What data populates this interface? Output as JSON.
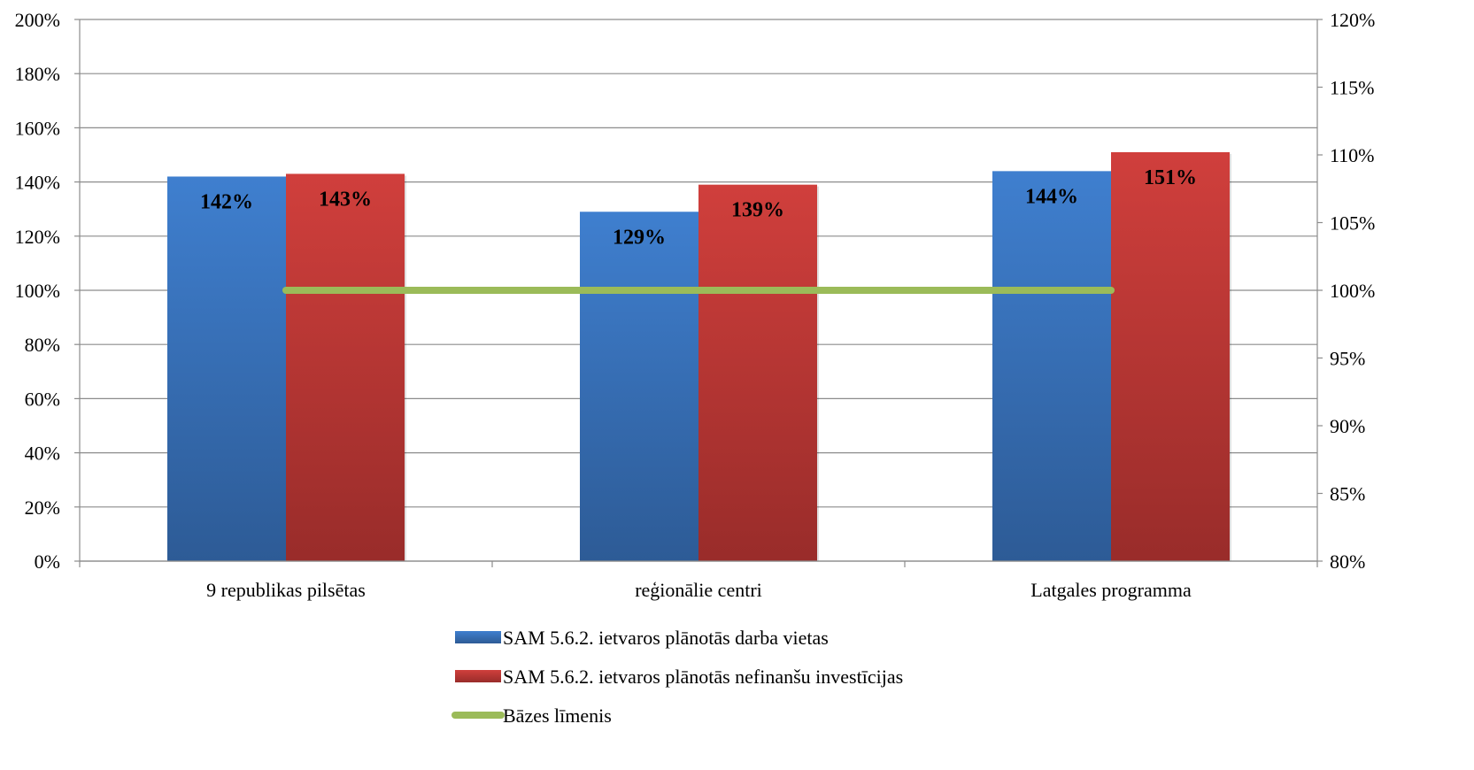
{
  "chart_data": {
    "type": "bar",
    "categories": [
      "9 republikas pilsētas",
      "reģionālie centri",
      "Latgales programma"
    ],
    "series": [
      {
        "name": "SAM 5.6.2. ietvaros plānotās darba vietas",
        "axis": "left",
        "values": [
          142,
          129,
          144
        ],
        "labels": [
          "142%",
          "129%",
          "144%"
        ],
        "color": "#3f7fcf",
        "color_dark": "#2d5b96"
      },
      {
        "name": "SAM 5.6.2. ietvaros plānotās nefinanšu investīcijas",
        "axis": "left",
        "values": [
          143,
          139,
          151
        ],
        "labels": [
          "143%",
          "139%",
          "151%"
        ],
        "color": "#d03f3c",
        "color_dark": "#992c2a"
      },
      {
        "name": "Bāzes līmenis",
        "type": "line",
        "axis": "right",
        "values": [
          100,
          100,
          100
        ],
        "color": "#9bbb59"
      }
    ],
    "left_axis": {
      "ylim": [
        0,
        200
      ],
      "ticks": [
        0,
        20,
        40,
        60,
        80,
        100,
        120,
        140,
        160,
        180,
        200
      ],
      "tick_labels": [
        "0%",
        "20%",
        "40%",
        "60%",
        "80%",
        "100%",
        "120%",
        "140%",
        "160%",
        "180%",
        "200%"
      ]
    },
    "right_axis": {
      "ylim": [
        80,
        120
      ],
      "ticks": [
        80,
        85,
        90,
        95,
        100,
        105,
        110,
        115,
        120
      ],
      "tick_labels": [
        "80%",
        "85%",
        "90%",
        "95%",
        "100%",
        "105%",
        "110%",
        "115%",
        "120%"
      ]
    },
    "grid": true,
    "legend_position": "bottom"
  }
}
